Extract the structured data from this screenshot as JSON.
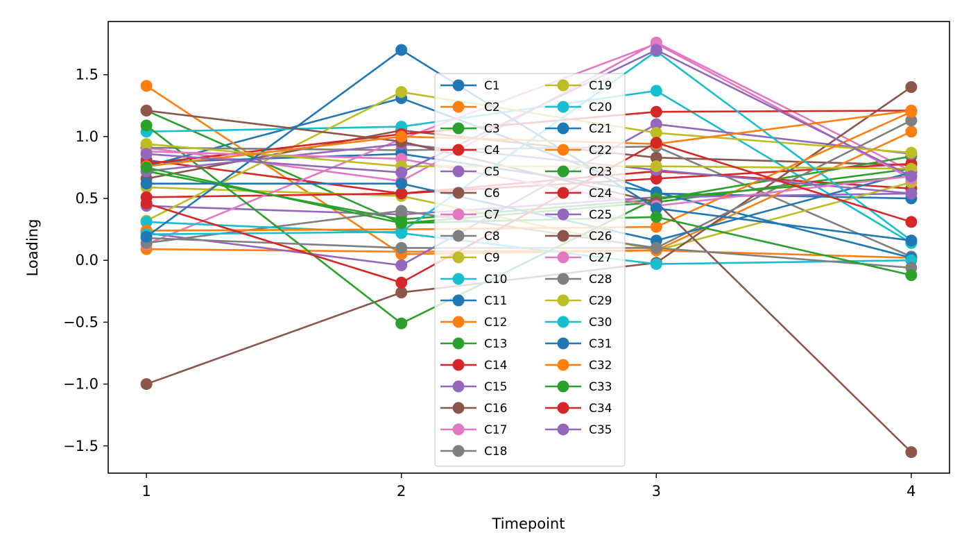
{
  "chart_data": {
    "type": "line",
    "title": "",
    "xlabel": "Timepoint",
    "ylabel": "Loading",
    "x": [
      1,
      2,
      3,
      4
    ],
    "xticks": [
      "1",
      "2",
      "3",
      "4"
    ],
    "yticks": [
      -1.5,
      -1.0,
      -0.5,
      0.0,
      0.5,
      1.0,
      1.5
    ],
    "ytick_labels": [
      "−1.5",
      "−1.0",
      "−0.5",
      "0.0",
      "0.5",
      "1.0",
      "1.5"
    ],
    "xlim": [
      0.85,
      4.15
    ],
    "ylim": [
      -1.72,
      1.93
    ],
    "legend_position": "center",
    "legend_columns": 2,
    "series": [
      {
        "name": "C1",
        "color": "#1f77b4",
        "values": [
          0.76,
          1.31,
          0.54,
          0.5
        ]
      },
      {
        "name": "C2",
        "color": "#ff7f0e",
        "values": [
          1.41,
          0.05,
          0.08,
          0.02
        ]
      },
      {
        "name": "C3",
        "color": "#2ca02c",
        "values": [
          1.21,
          0.3,
          0.47,
          0.74
        ]
      },
      {
        "name": "C4",
        "color": "#d62728",
        "values": [
          0.81,
          0.54,
          0.72,
          0.58
        ]
      },
      {
        "name": "C5",
        "color": "#9467bd",
        "values": [
          0.44,
          0.37,
          0.51,
          0.54
        ]
      },
      {
        "name": "C6",
        "color": "#8c564b",
        "values": [
          0.66,
          1.05,
          0.83,
          0.77
        ]
      },
      {
        "name": "C7",
        "color": "#e377c2",
        "values": [
          0.91,
          0.64,
          1.76,
          0.72
        ]
      },
      {
        "name": "C8",
        "color": "#7f7f7f",
        "values": [
          0.91,
          0.89,
          0.92,
          0.03
        ]
      },
      {
        "name": "C9",
        "color": "#bcbd22",
        "values": [
          0.59,
          0.52,
          0.08,
          0.63
        ]
      },
      {
        "name": "C10",
        "color": "#17becf",
        "values": [
          1.04,
          1.08,
          1.37,
          0.14
        ]
      },
      {
        "name": "C11",
        "color": "#1f77b4",
        "values": [
          0.79,
          0.86,
          0.55,
          0.02
        ]
      },
      {
        "name": "C12",
        "color": "#ff7f0e",
        "values": [
          0.09,
          0.07,
          0.08,
          1.04
        ]
      },
      {
        "name": "C13",
        "color": "#2ca02c",
        "values": [
          0.72,
          0.33,
          0.49,
          0.84
        ]
      },
      {
        "name": "C14",
        "color": "#d62728",
        "values": [
          0.51,
          0.54,
          0.66,
          0.78
        ]
      },
      {
        "name": "C15",
        "color": "#9467bd",
        "values": [
          0.22,
          -0.04,
          1.1,
          0.86
        ]
      },
      {
        "name": "C16",
        "color": "#8c564b",
        "values": [
          -1.0,
          -0.26,
          -0.02,
          1.4
        ]
      },
      {
        "name": "C17",
        "color": "#e377c2",
        "values": [
          0.13,
          0.98,
          1.75,
          0.66
        ]
      },
      {
        "name": "C18",
        "color": "#7f7f7f",
        "values": [
          0.14,
          0.4,
          0.1,
          1.13
        ]
      },
      {
        "name": "C19",
        "color": "#bcbd22",
        "values": [
          0.32,
          1.36,
          1.03,
          0.87
        ]
      },
      {
        "name": "C20",
        "color": "#17becf",
        "values": [
          0.31,
          0.22,
          -0.03,
          0.0
        ]
      },
      {
        "name": "C21",
        "color": "#1f77b4",
        "values": [
          0.62,
          0.62,
          0.16,
          0.71
        ]
      },
      {
        "name": "C22",
        "color": "#ff7f0e",
        "values": [
          0.24,
          0.25,
          0.27,
          1.2
        ]
      },
      {
        "name": "C23",
        "color": "#2ca02c",
        "values": [
          1.09,
          -0.51,
          0.5,
          0.68
        ]
      },
      {
        "name": "C24",
        "color": "#d62728",
        "values": [
          0.78,
          1.02,
          1.2,
          1.21
        ]
      },
      {
        "name": "C25",
        "color": "#9467bd",
        "values": [
          0.72,
          0.94,
          0.73,
          0.54
        ]
      },
      {
        "name": "C26",
        "color": "#8c564b",
        "values": [
          1.21,
          0.96,
          0.47,
          -1.55
        ]
      },
      {
        "name": "C27",
        "color": "#e377c2",
        "values": [
          0.88,
          0.82,
          0.44,
          0.68
        ]
      },
      {
        "name": "C28",
        "color": "#7f7f7f",
        "values": [
          0.18,
          0.1,
          0.1,
          -0.06
        ]
      },
      {
        "name": "C29",
        "color": "#bcbd22",
        "values": [
          0.94,
          0.76,
          0.76,
          0.74
        ]
      },
      {
        "name": "C30",
        "color": "#17becf",
        "values": [
          0.21,
          0.23,
          1.69,
          0.16
        ]
      },
      {
        "name": "C31",
        "color": "#1f77b4",
        "values": [
          0.19,
          1.7,
          0.42,
          0.16
        ]
      },
      {
        "name": "C32",
        "color": "#ff7f0e",
        "values": [
          0.76,
          1.0,
          0.94,
          1.21
        ]
      },
      {
        "name": "C33",
        "color": "#2ca02c",
        "values": [
          0.75,
          0.3,
          0.35,
          -0.12
        ]
      },
      {
        "name": "C34",
        "color": "#d62728",
        "values": [
          0.46,
          -0.18,
          0.95,
          0.31
        ]
      },
      {
        "name": "C35",
        "color": "#9467bd",
        "values": [
          0.86,
          0.71,
          1.7,
          0.68
        ]
      }
    ]
  }
}
